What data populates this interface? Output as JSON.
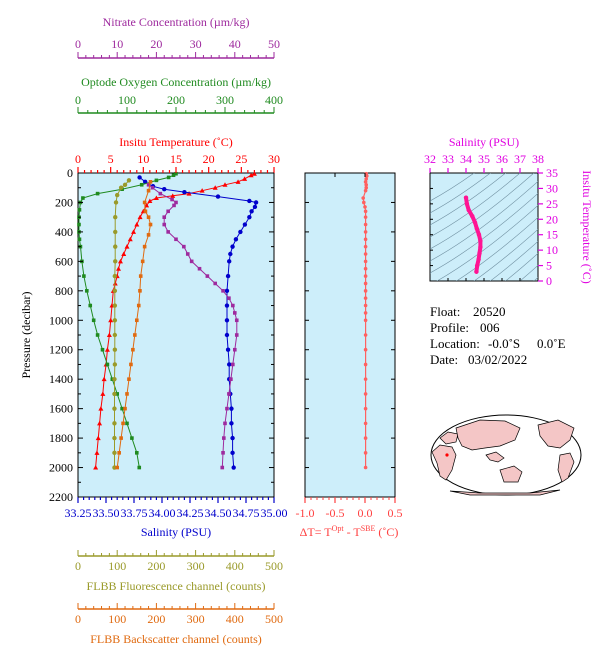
{
  "chart_data": [
    {
      "type": "line",
      "panel": "main-profile",
      "axes": {
        "nitrate": {
          "label": "Nitrate Concentration (µm/kg)",
          "ticks": [
            "0",
            "10",
            "20",
            "30",
            "40",
            "50"
          ],
          "range": [
            0,
            50
          ],
          "color": "#9e2a9e"
        },
        "oxygen": {
          "label": "Optode Oxygen Concentration (µm/kg)",
          "ticks": [
            "0",
            "100",
            "200",
            "300",
            "400"
          ],
          "range": [
            0,
            400
          ],
          "color": "#1f8a1f"
        },
        "temperature": {
          "label": "Insitu Temperature (˚C)",
          "ticks": [
            "0",
            "5",
            "10",
            "15",
            "20",
            "25",
            "30"
          ],
          "range": [
            0,
            30
          ],
          "color": "#ff0000"
        },
        "pressure": {
          "label": "Pressure (decibar)",
          "ticks": [
            "0",
            "200",
            "400",
            "600",
            "800",
            "1000",
            "1200",
            "1400",
            "1600",
            "1800",
            "2000",
            "2200"
          ],
          "range": [
            0,
            2200
          ],
          "color": "#000000"
        },
        "salinity": {
          "label": "Salinity (PSU)",
          "ticks": [
            "33.25",
            "33.50",
            "33.75",
            "34.00",
            "34.25",
            "34.50",
            "34.75",
            "35.00"
          ],
          "range": [
            33.25,
            35.0
          ],
          "color": "#0000cc"
        },
        "fluorescence": {
          "label": "FLBB Fluorescence channel (counts)",
          "ticks": [
            "0",
            "100",
            "200",
            "300",
            "400",
            "500"
          ],
          "range": [
            0,
            500
          ],
          "color": "#9a9a2a"
        },
        "backscatter": {
          "label": "FLBB Backscatter channel (counts)",
          "ticks": [
            "0",
            "100",
            "200",
            "300",
            "400",
            "500"
          ],
          "range": [
            0,
            500
          ],
          "color": "#e06a10"
        }
      },
      "series": [
        {
          "key": "temperature",
          "color": "#ff0000",
          "marker": "triangle",
          "points": [
            [
              27.0,
              5
            ],
            [
              26.5,
              15
            ],
            [
              25.5,
              40
            ],
            [
              24.5,
              60
            ],
            [
              22.5,
              80
            ],
            [
              21.0,
              100
            ],
            [
              19.0,
              120
            ],
            [
              17.0,
              140
            ],
            [
              14.5,
              155
            ],
            [
              12.0,
              170
            ],
            [
              11.0,
              190
            ],
            [
              10.5,
              220
            ],
            [
              10.0,
              260
            ],
            [
              9.5,
              300
            ],
            [
              9.0,
              350
            ],
            [
              8.5,
              400
            ],
            [
              8.0,
              450
            ],
            [
              7.5,
              500
            ],
            [
              7.0,
              550
            ],
            [
              6.5,
              600
            ],
            [
              6.2,
              650
            ],
            [
              6.0,
              700
            ],
            [
              5.7,
              750
            ],
            [
              5.4,
              800
            ],
            [
              5.2,
              900
            ],
            [
              5.0,
              1000
            ],
            [
              4.8,
              1100
            ],
            [
              4.5,
              1200
            ],
            [
              4.3,
              1300
            ],
            [
              4.0,
              1400
            ],
            [
              3.8,
              1500
            ],
            [
              3.5,
              1600
            ],
            [
              3.3,
              1700
            ],
            [
              3.1,
              1800
            ],
            [
              2.9,
              1900
            ],
            [
              2.7,
              2000
            ]
          ]
        },
        {
          "key": "salinity",
          "color": "#0000cc",
          "marker": "circle",
          "points": [
            [
              33.8,
              30
            ],
            [
              33.85,
              60
            ],
            [
              33.92,
              90
            ],
            [
              34.02,
              110
            ],
            [
              34.2,
              130
            ],
            [
              34.5,
              160
            ],
            [
              34.78,
              190
            ],
            [
              34.84,
              200
            ],
            [
              34.83,
              230
            ],
            [
              34.8,
              260
            ],
            [
              34.78,
              300
            ],
            [
              34.74,
              350
            ],
            [
              34.7,
              400
            ],
            [
              34.66,
              450
            ],
            [
              34.63,
              500
            ],
            [
              34.61,
              550
            ],
            [
              34.6,
              600
            ],
            [
              34.59,
              700
            ],
            [
              34.58,
              800
            ],
            [
              34.58,
              900
            ],
            [
              34.58,
              1000
            ],
            [
              34.58,
              1100
            ],
            [
              34.59,
              1200
            ],
            [
              34.6,
              1300
            ],
            [
              34.6,
              1400
            ],
            [
              34.61,
              1500
            ],
            [
              34.62,
              1600
            ],
            [
              34.62,
              1700
            ],
            [
              34.63,
              1800
            ],
            [
              34.63,
              1900
            ],
            [
              34.64,
              2000
            ]
          ]
        },
        {
          "key": "oxygen",
          "color": "#1f8a1f",
          "marker": "square",
          "points": [
            [
              200,
              5
            ],
            [
              195,
              15
            ],
            [
              185,
              30
            ],
            [
              160,
              50
            ],
            [
              130,
              80
            ],
            [
              90,
              110
            ],
            [
              40,
              140
            ],
            [
              10,
              170
            ],
            [
              5,
              200
            ],
            [
              3,
              250
            ],
            [
              2,
              300
            ],
            [
              2,
              350
            ],
            [
              2,
              400
            ],
            [
              3,
              450
            ],
            [
              5,
              500
            ],
            [
              8,
              600
            ],
            [
              12,
              700
            ],
            [
              18,
              800
            ],
            [
              25,
              900
            ],
            [
              32,
              1000
            ],
            [
              40,
              1100
            ],
            [
              50,
              1200
            ],
            [
              60,
              1300
            ],
            [
              70,
              1400
            ],
            [
              80,
              1500
            ],
            [
              90,
              1600
            ],
            [
              100,
              1700
            ],
            [
              110,
              1800
            ],
            [
              120,
              1900
            ],
            [
              125,
              2000
            ]
          ]
        },
        {
          "key": "nitrate",
          "color": "#9e2a9e",
          "marker": "square",
          "points": [
            [
              18,
              80
            ],
            [
              19,
              100
            ],
            [
              21,
              140
            ],
            [
              24,
              180
            ],
            [
              25,
              200
            ],
            [
              24.5,
              220
            ],
            [
              23,
              260
            ],
            [
              22,
              300
            ],
            [
              22,
              350
            ],
            [
              23,
              400
            ],
            [
              25,
              450
            ],
            [
              27,
              500
            ],
            [
              28,
              550
            ],
            [
              29,
              600
            ],
            [
              31,
              650
            ],
            [
              33,
              700
            ],
            [
              35,
              750
            ],
            [
              37,
              800
            ],
            [
              38.5,
              850
            ],
            [
              39.5,
              900
            ],
            [
              40,
              950
            ],
            [
              40.5,
              1000
            ],
            [
              40.5,
              1100
            ],
            [
              40,
              1200
            ],
            [
              39.5,
              1300
            ],
            [
              39,
              1400
            ],
            [
              38.5,
              1500
            ],
            [
              38,
              1600
            ],
            [
              37.5,
              1700
            ],
            [
              37.2,
              1800
            ],
            [
              37,
              1900
            ],
            [
              36.8,
              2000
            ]
          ]
        },
        {
          "key": "fluorescence",
          "color": "#9a9a2a",
          "marker": "circle",
          "points": [
            [
              130,
              50
            ],
            [
              120,
              80
            ],
            [
              110,
              100
            ],
            [
              100,
              150
            ],
            [
              97,
              200
            ],
            [
              95,
              300
            ],
            [
              95,
              400
            ],
            [
              95,
              500
            ],
            [
              95,
              600
            ],
            [
              94,
              700
            ],
            [
              94,
              800
            ],
            [
              94,
              900
            ],
            [
              94,
              1000
            ],
            [
              94,
              1100
            ],
            [
              94,
              1200
            ],
            [
              94,
              1300
            ],
            [
              93,
              1400
            ],
            [
              93,
              1500
            ],
            [
              93,
              1600
            ],
            [
              93,
              1700
            ],
            [
              93,
              1800
            ],
            [
              93,
              1900
            ],
            [
              93,
              2000
            ]
          ]
        },
        {
          "key": "backscatter",
          "color": "#e06a10",
          "marker": "square",
          "points": [
            [
              185,
              60
            ],
            [
              180,
              120
            ],
            [
              170,
              200
            ],
            [
              172,
              260
            ],
            [
              180,
              300
            ],
            [
              185,
              350
            ],
            [
              180,
              420
            ],
            [
              170,
              500
            ],
            [
              165,
              600
            ],
            [
              160,
              700
            ],
            [
              158,
              800
            ],
            [
              155,
              900
            ],
            [
              150,
              1000
            ],
            [
              145,
              1100
            ],
            [
              140,
              1200
            ],
            [
              135,
              1300
            ],
            [
              130,
              1400
            ],
            [
              125,
              1500
            ],
            [
              120,
              1600
            ],
            [
              115,
              1700
            ],
            [
              110,
              1800
            ],
            [
              105,
              1900
            ],
            [
              100,
              2000
            ]
          ]
        }
      ],
      "grid": false,
      "background": "#cdeefa"
    },
    {
      "type": "line",
      "panel": "delta-t",
      "xlabel_parts": {
        "dt": "ΔT= T",
        "opt": "Opt",
        "minus": " - T",
        "sbe": "SBE",
        "unit": " (˚C)"
      },
      "xticks": [
        "-1.0",
        "-0.5",
        "0.0",
        "0.5"
      ],
      "xlim": [
        -1.0,
        0.5
      ],
      "ylim": [
        0,
        2200
      ],
      "color": "#ff6060",
      "points": [
        [
          0.02,
          5
        ],
        [
          0.03,
          20
        ],
        [
          0.02,
          40
        ],
        [
          0.01,
          60
        ],
        [
          0.02,
          80
        ],
        [
          0.02,
          100
        ],
        [
          0.01,
          120
        ],
        [
          -0.03,
          170
        ],
        [
          -0.02,
          200
        ],
        [
          0.0,
          230
        ],
        [
          0.01,
          260
        ],
        [
          0.01,
          300
        ],
        [
          0.01,
          350
        ],
        [
          0.01,
          400
        ],
        [
          0.01,
          450
        ],
        [
          0.01,
          500
        ],
        [
          0.01,
          550
        ],
        [
          0.01,
          600
        ],
        [
          0.01,
          650
        ],
        [
          0.01,
          700
        ],
        [
          0.01,
          750
        ],
        [
          0.01,
          800
        ],
        [
          0.01,
          850
        ],
        [
          0.01,
          900
        ],
        [
          0.01,
          950
        ],
        [
          0.01,
          1000
        ],
        [
          0.01,
          1100
        ],
        [
          0.01,
          1200
        ],
        [
          0.01,
          1300
        ],
        [
          0.01,
          1400
        ],
        [
          0.01,
          1500
        ],
        [
          0.01,
          1600
        ],
        [
          0.01,
          1700
        ],
        [
          0.01,
          1800
        ],
        [
          0.01,
          1900
        ],
        [
          0.01,
          2000
        ]
      ]
    },
    {
      "type": "line",
      "panel": "ts-diagram",
      "xlabel": "Salinity (PSU)",
      "ylabel": "Insitu Temperature (˚C)",
      "xticks": [
        "32",
        "33",
        "34",
        "35",
        "36",
        "37",
        "38"
      ],
      "yticks": [
        "0",
        "5",
        "10",
        "15",
        "20",
        "25",
        "30",
        "35"
      ],
      "xlim": [
        32,
        38
      ],
      "ylim": [
        0,
        35
      ],
      "color": "#ff1493",
      "points": [
        [
          34.0,
          27
        ],
        [
          34.05,
          25
        ],
        [
          34.15,
          23
        ],
        [
          34.35,
          21
        ],
        [
          34.5,
          19
        ],
        [
          34.6,
          17
        ],
        [
          34.72,
          15
        ],
        [
          34.8,
          13
        ],
        [
          34.8,
          11
        ],
        [
          34.75,
          9
        ],
        [
          34.7,
          7
        ],
        [
          34.62,
          5
        ],
        [
          34.58,
          3
        ]
      ]
    }
  ],
  "info": {
    "float_label": "Float:",
    "float_value": "20520",
    "profile_label": "Profile:",
    "profile_value": "006",
    "location_label": "Location:",
    "location_lat": "-0.0˚S",
    "location_lon": "0.0˚E",
    "date_label": "Date:",
    "date_value": "03/02/2022"
  },
  "map": {
    "land_color": "#f4c6c6",
    "ocean_color": "#ffffff",
    "marker_color": "#ff0000"
  }
}
